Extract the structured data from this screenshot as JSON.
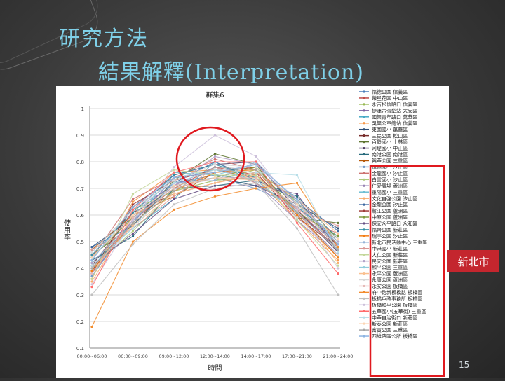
{
  "slide": {
    "title": "研究方法",
    "subtitle": "結果解釋(Interpretation)",
    "callout": "新北市",
    "page_number": "15"
  },
  "colors": {
    "title": "#7fd0e8",
    "red_highlight": "#e0191f",
    "callout_bg": "#c4262e"
  },
  "chart_data": {
    "type": "line",
    "title": "群集6",
    "xlabel": "時間",
    "ylabel": "使用率",
    "ylim": [
      0.1,
      1.0
    ],
    "yticks": [
      "0.1",
      "0.2",
      "0.3",
      "0.4",
      "0.5",
      "0.6",
      "0.7",
      "0.8",
      "0.9",
      "1"
    ],
    "categories": [
      "00:00~06:00",
      "06:00~09:00",
      "09:00~12:00",
      "12:00~14:00",
      "14:00~17:00",
      "17:00~21:00",
      "21:00~24:00"
    ],
    "legend_position": "right",
    "series": [
      {
        "name": "福德公園 信義區",
        "values": [
          0.44,
          0.6,
          0.72,
          0.75,
          0.73,
          0.61,
          0.49
        ]
      },
      {
        "name": "榮星花園 中山區",
        "values": [
          0.4,
          0.58,
          0.7,
          0.78,
          0.75,
          0.62,
          0.47
        ]
      },
      {
        "name": "永吉松信路口 信義區",
        "values": [
          0.46,
          0.62,
          0.69,
          0.73,
          0.77,
          0.65,
          0.5
        ]
      },
      {
        "name": "捷運六張犁站 大安區",
        "values": [
          0.38,
          0.57,
          0.74,
          0.76,
          0.78,
          0.6,
          0.45
        ]
      },
      {
        "name": "國興青年路口 萬華區",
        "values": [
          0.42,
          0.55,
          0.66,
          0.8,
          0.72,
          0.63,
          0.52
        ]
      },
      {
        "name": "吳興公車總站 信義區",
        "values": [
          0.36,
          0.65,
          0.76,
          0.77,
          0.74,
          0.58,
          0.43
        ]
      },
      {
        "name": "東園國小 萬華區",
        "values": [
          0.48,
          0.59,
          0.71,
          0.74,
          0.71,
          0.64,
          0.55
        ]
      },
      {
        "name": "三民公園 松山區",
        "values": [
          0.41,
          0.61,
          0.68,
          0.72,
          0.76,
          0.66,
          0.48
        ]
      },
      {
        "name": "百齡國小 士林區",
        "values": [
          0.45,
          0.56,
          0.73,
          0.83,
          0.79,
          0.59,
          0.57
        ]
      },
      {
        "name": "河堤國小 中正區",
        "values": [
          0.39,
          0.63,
          0.75,
          0.79,
          0.8,
          0.62,
          0.46
        ]
      },
      {
        "name": "南港公園 南港區",
        "values": [
          0.43,
          0.52,
          0.7,
          0.71,
          0.73,
          0.67,
          0.51
        ]
      },
      {
        "name": "興華公園 三重區",
        "values": [
          0.47,
          0.6,
          0.67,
          0.76,
          0.78,
          0.61,
          0.44
        ]
      },
      {
        "name": "樟樹國小 汐止區",
        "values": [
          0.37,
          0.58,
          0.72,
          0.74,
          0.7,
          0.63,
          0.49
        ]
      },
      {
        "name": "金龍國小 汐止區",
        "values": [
          0.44,
          0.66,
          0.74,
          0.81,
          0.77,
          0.6,
          0.53
        ]
      },
      {
        "name": "白雲國小 汐止區",
        "values": [
          0.4,
          0.54,
          0.69,
          0.73,
          0.74,
          0.65,
          0.47
        ]
      },
      {
        "name": "仁愛廣場 蘆洲區",
        "values": [
          0.46,
          0.62,
          0.71,
          0.78,
          0.72,
          0.58,
          0.45
        ]
      },
      {
        "name": "重陽國小 三重區",
        "values": [
          0.42,
          0.57,
          0.76,
          0.75,
          0.79,
          0.64,
          0.5
        ]
      },
      {
        "name": "文化自強公園 汐止區",
        "values": [
          0.35,
          0.6,
          0.68,
          0.72,
          0.75,
          0.62,
          0.42
        ]
      },
      {
        "name": "金龍公園 汐止區",
        "values": [
          0.48,
          0.56,
          0.72,
          0.8,
          0.73,
          0.66,
          0.54
        ]
      },
      {
        "name": "鷺江公園 蘆洲區",
        "values": [
          0.38,
          0.64,
          0.73,
          0.77,
          0.76,
          0.59,
          0.48
        ]
      },
      {
        "name": "中原公園 蘆洲區",
        "values": [
          0.44,
          0.59,
          0.7,
          0.74,
          0.78,
          0.61,
          0.52
        ]
      },
      {
        "name": "保安永平路口 永和區",
        "values": [
          0.41,
          0.53,
          0.66,
          0.71,
          0.71,
          0.68,
          0.46
        ]
      },
      {
        "name": "福齊公園 新莊區",
        "values": [
          0.45,
          0.61,
          0.75,
          0.79,
          0.74,
          0.63,
          0.51
        ]
      },
      {
        "name": "瑞亭公園 汐止區",
        "values": [
          0.39,
          0.57,
          0.69,
          0.76,
          0.77,
          0.6,
          0.44
        ]
      },
      {
        "name": "新北市民活動中心 三重區",
        "values": [
          0.43,
          0.63,
          0.72,
          0.73,
          0.8,
          0.65,
          0.49
        ]
      },
      {
        "name": "中港國小 新莊區",
        "values": [
          0.47,
          0.55,
          0.67,
          0.78,
          0.72,
          0.62,
          0.56
        ]
      },
      {
        "name": "大仁公園 新莊區",
        "values": [
          0.36,
          0.68,
          0.77,
          0.75,
          0.75,
          0.58,
          0.41
        ]
      },
      {
        "name": "民安公園 新莊區",
        "values": [
          0.42,
          0.58,
          0.71,
          0.82,
          0.79,
          0.64,
          0.5
        ]
      },
      {
        "name": "和平公園 三重區",
        "values": [
          0.44,
          0.6,
          0.74,
          0.77,
          0.73,
          0.61,
          0.47
        ]
      },
      {
        "name": "永平公園 蘆洲區",
        "values": [
          0.4,
          0.56,
          0.68,
          0.72,
          0.76,
          0.66,
          0.53
        ]
      },
      {
        "name": "永康公園 蘆洲區",
        "values": [
          0.46,
          0.62,
          0.73,
          0.79,
          0.78,
          0.59,
          0.45
        ]
      },
      {
        "name": "永安公園 板橋區",
        "values": [
          0.38,
          0.59,
          0.7,
          0.74,
          0.74,
          0.63,
          0.48
        ]
      },
      {
        "name": "府中路新板橋路 板橋區",
        "values": [
          0.18,
          0.5,
          0.62,
          0.67,
          0.7,
          0.72,
          0.48
        ]
      },
      {
        "name": "板橋戶政事務所 板橋區",
        "values": [
          0.3,
          0.49,
          0.64,
          0.7,
          0.72,
          0.55,
          0.3
        ]
      },
      {
        "name": "板橋和平公園 板橋區",
        "values": [
          0.34,
          0.58,
          0.78,
          0.9,
          0.82,
          0.62,
          0.4
        ]
      },
      {
        "name": "五華國小(五華街) 三重區",
        "values": [
          0.33,
          0.62,
          0.76,
          0.8,
          0.8,
          0.57,
          0.38
        ]
      },
      {
        "name": "中華自治街口 新莊區",
        "values": [
          0.41,
          0.55,
          0.72,
          0.77,
          0.76,
          0.75,
          0.46
        ]
      },
      {
        "name": "新泰公園 新莊區",
        "values": [
          0.44,
          0.6,
          0.71,
          0.74,
          0.73,
          0.64,
          0.51
        ]
      },
      {
        "name": "富貴公園 三重區",
        "values": [
          0.4,
          0.57,
          0.69,
          0.78,
          0.77,
          0.61,
          0.47
        ]
      },
      {
        "name": "四維路區公所 板橋區",
        "values": [
          0.43,
          0.63,
          0.74,
          0.76,
          0.79,
          0.66,
          0.49
        ]
      }
    ]
  }
}
